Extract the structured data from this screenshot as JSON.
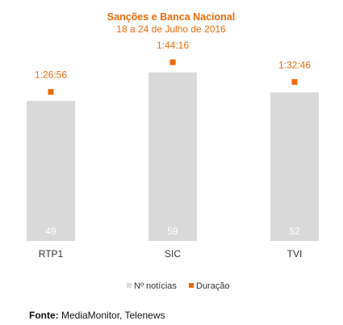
{
  "chart_data": {
    "type": "bar",
    "title": "Sanções e Banca Nacional",
    "subtitle": "18 a 24 de Julho de 2016",
    "categories": [
      "RTP1",
      "SIC",
      "TVI"
    ],
    "series": [
      {
        "name": "Nº notícias",
        "type": "bar",
        "values": [
          49,
          59,
          52
        ],
        "color": "#d9d9d9"
      },
      {
        "name": "Duração",
        "type": "marker",
        "values": [
          "1:26:56",
          "1:44:16",
          "1:32:46"
        ],
        "seconds": [
          5216,
          6256,
          5566
        ],
        "color": "#ec6a0c"
      }
    ],
    "ylim_bars": [
      0,
      75
    ],
    "ylim_duration_seconds": [
      0,
      7500
    ],
    "grid": false,
    "legend": "bottom-center"
  },
  "footer": {
    "label": "Fonte:",
    "text": "MediaMonitor, Telenews"
  },
  "colors": {
    "accent": "#ec6a0c",
    "bar": "#d9d9d9",
    "bar_label": "#ffffff",
    "text": "#333333"
  }
}
